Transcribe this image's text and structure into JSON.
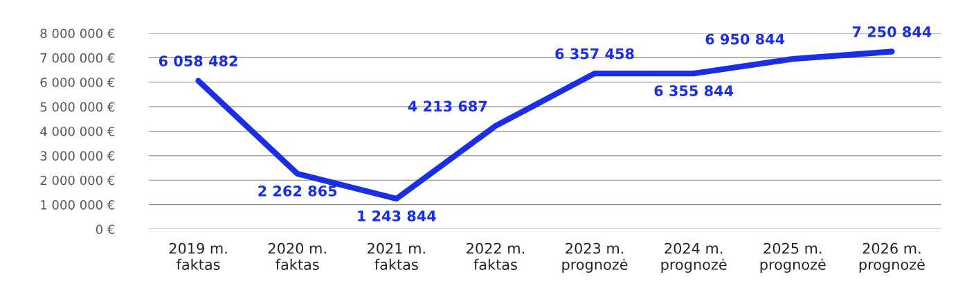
{
  "chart_data": {
    "type": "line",
    "categories": [
      "2019 m.\nfaktas",
      "2020 m.\nfaktas",
      "2021 m.\nfaktas",
      "2022 m.\nfaktas",
      "2023 m.\nprognozė",
      "2024 m.\nprognozė",
      "2025 m.\nprognozė",
      "2026 m.\nprognozė"
    ],
    "series": [
      {
        "color": "#1a2ee6",
        "values": [
          6058482,
          2262865,
          1243844,
          4213687,
          6357458,
          6355844,
          6950844,
          7250844
        ],
        "value_labels": [
          "6 058 482",
          "2 262 865",
          "1 243 844",
          "4 213 687",
          "6 357 458",
          "6 355 844",
          "6 950 844",
          "7 250 844"
        ]
      }
    ],
    "ylim": [
      0,
      8000000
    ],
    "yticks": [
      {
        "value": 0,
        "label": "0 €"
      },
      {
        "value": 1000000,
        "label": "1 000 000 €"
      },
      {
        "value": 2000000,
        "label": "2 000 000 €"
      },
      {
        "value": 3000000,
        "label": "3 000 000 €"
      },
      {
        "value": 4000000,
        "label": "4 000 000 €"
      },
      {
        "value": 5000000,
        "label": "5 000 000 €"
      },
      {
        "value": 6000000,
        "label": "6 000 000 €"
      },
      {
        "value": 7000000,
        "label": "7 000 000 €"
      },
      {
        "value": 8000000,
        "label": "8 000 000 €"
      }
    ],
    "grid": "y",
    "marker": "none",
    "line_style": "solid",
    "legend": false
  }
}
